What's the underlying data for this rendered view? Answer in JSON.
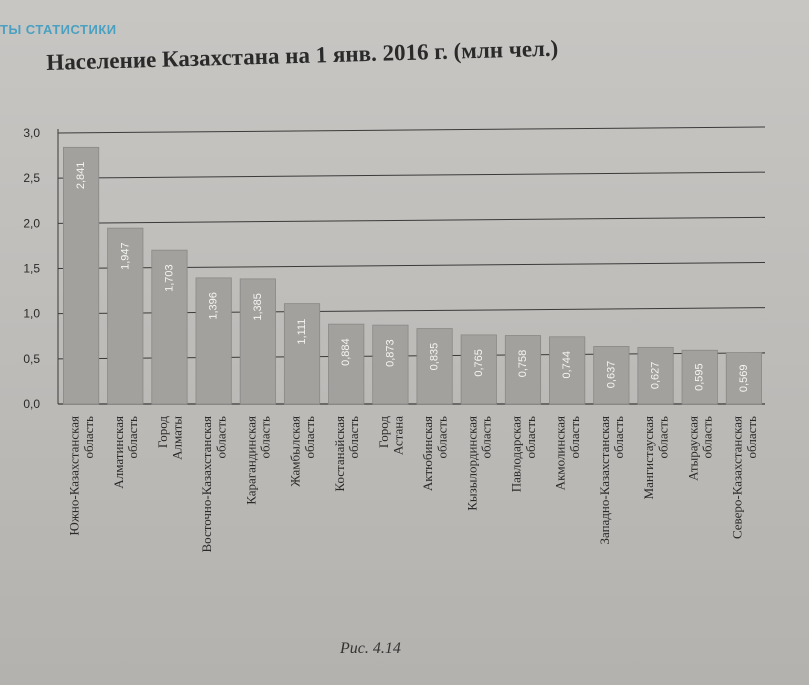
{
  "header": {
    "section_label": "ТЫ СТАТИСТИКИ"
  },
  "caption": "Рис. 4.14",
  "colors": {
    "bar": "#a3a19e",
    "bar_edge": "#8a8885",
    "text": "#2a2a2a",
    "grid": "#3a3a3a"
  },
  "chart_data": {
    "type": "bar",
    "title": "Население Казахстана на 1 янв. 2016 г. (млн чел.)",
    "xlabel": "",
    "ylabel": "",
    "ylim": [
      0,
      3.0
    ],
    "yticks": [
      "0,0",
      "0,5",
      "1,0",
      "1,5",
      "2,0",
      "2,5",
      "3,0"
    ],
    "grid": true,
    "categories": [
      "Южно-Казахстанская область",
      "Алматинская область",
      "Город Алматы",
      "Восточно-Казахстанская область",
      "Карагандинская область",
      "Жамбылская область",
      "Костанайская область",
      "Город Астана",
      "Актюбинская область",
      "Кызылординская область",
      "Павлодарская область",
      "Акмолинская область",
      "Западно-Казахстанская область",
      "Мангистауская область",
      "Атырауская область",
      "Северо-Казахстанская область"
    ],
    "values": [
      2.841,
      1.947,
      1.703,
      1.396,
      1.385,
      1.111,
      0.884,
      0.873,
      0.835,
      0.765,
      0.758,
      0.744,
      0.637,
      0.627,
      0.595,
      0.569
    ],
    "value_labels": [
      "2,841",
      "1,947",
      "1,703",
      "1,396",
      "1,385",
      "1,111",
      "0,884",
      "0,873",
      "0,835",
      "0,765",
      "0,758",
      "0,744",
      "0,637",
      "0,627",
      "0,595",
      "0,569"
    ]
  }
}
